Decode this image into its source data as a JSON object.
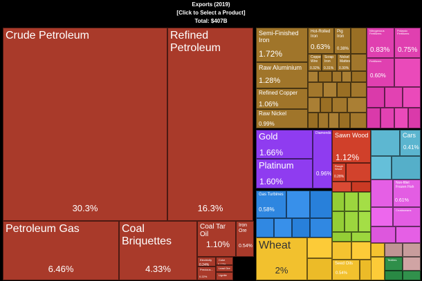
{
  "header": {
    "title": "Exports (2019)",
    "subtitle": "[Click to Select a Product]",
    "total": "Total: $407B"
  },
  "colors": {
    "mineral": "#A93A2A",
    "metals": "#A0752A",
    "stones": "#8F3CF0",
    "wood": "#D0402A",
    "animal": "#E35DE3",
    "chemicals": "#E040B0",
    "machinery": "#2E86E0",
    "transport": "#5BB5CF",
    "vegetable": "#9AD43C",
    "foodstuffs": "#F2C12E",
    "textiles": "#2F8F4A",
    "misc": "#C69A9A"
  },
  "chart_data": {
    "type": "treemap",
    "title": "Exports (2019)",
    "total": "$407B",
    "unit": "% of total exports",
    "items": [
      {
        "name": "Crude Petroleum",
        "share": 30.3,
        "group": "mineral"
      },
      {
        "name": "Refined Petroleum",
        "share": 16.3,
        "group": "mineral"
      },
      {
        "name": "Petroleum Gas",
        "share": 6.46,
        "group": "mineral"
      },
      {
        "name": "Coal Briquettes",
        "share": 4.33,
        "group": "mineral"
      },
      {
        "name": "Coal Tar Oil",
        "share": 1.1,
        "group": "mineral"
      },
      {
        "name": "Iron Ore",
        "share": 0.54,
        "group": "mineral"
      },
      {
        "name": "Electricity",
        "share": 0.24,
        "group": "mineral"
      },
      {
        "name": "Coke",
        "share": 0.17,
        "group": "mineral"
      },
      {
        "name": "Lead Ore",
        "share": null,
        "group": "mineral"
      },
      {
        "name": "Precious...",
        "share": 0.22,
        "group": "mineral"
      },
      {
        "name": "Lignite",
        "share": null,
        "group": "mineral"
      },
      {
        "name": "Semi-Finished Iron",
        "share": 1.72,
        "group": "metals"
      },
      {
        "name": "Raw Aluminium",
        "share": 1.28,
        "group": "metals"
      },
      {
        "name": "Refined Copper",
        "share": 1.06,
        "group": "metals"
      },
      {
        "name": "Raw Nickel",
        "share": 0.99,
        "group": "metals"
      },
      {
        "name": "Hot-Rolled Iron",
        "share": 0.63,
        "group": "metals"
      },
      {
        "name": "Pig Iron",
        "share": 0.38,
        "group": "metals"
      },
      {
        "name": "Copper Wire",
        "share": 0.32,
        "group": "metals"
      },
      {
        "name": "Scrap Iron",
        "share": 0.31,
        "group": "metals"
      },
      {
        "name": "Nickel Mattes",
        "share": 0.3,
        "group": "metals"
      },
      {
        "name": "Gold",
        "share": 1.66,
        "group": "stones"
      },
      {
        "name": "Platinum",
        "share": 1.6,
        "group": "stones"
      },
      {
        "name": "Diamonds",
        "share": 0.96,
        "group": "stones"
      },
      {
        "name": "Sawn Wood",
        "share": 1.12,
        "group": "wood"
      },
      {
        "name": "Rough Wood",
        "share": 0.28,
        "group": "wood"
      },
      {
        "name": "Cars",
        "share": 0.41,
        "group": "transport"
      },
      {
        "name": "Non-fillet Frozen Fish",
        "share": 0.61,
        "group": "animal"
      },
      {
        "name": "Crustaceans",
        "share": null,
        "group": "animal"
      },
      {
        "name": "Wheat",
        "share": 2.0,
        "group": "foodstuffs"
      },
      {
        "name": "Seed Oils",
        "share": 0.54,
        "group": "foodstuffs"
      },
      {
        "name": "Gas Turbines",
        "share": 0.58,
        "group": "machinery"
      },
      {
        "name": "Nitrogenous Fertilizers",
        "share": 0.83,
        "group": "chemicals"
      },
      {
        "name": "Potassic Fertilizers",
        "share": 0.75,
        "group": "chemicals"
      },
      {
        "name": "Fertilizers",
        "share": 0.6,
        "group": "chemicals"
      },
      {
        "name": "Textiles",
        "share": null,
        "group": "textiles"
      }
    ]
  }
}
